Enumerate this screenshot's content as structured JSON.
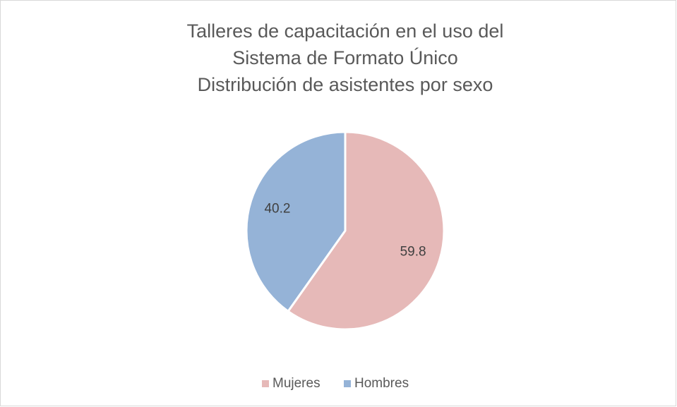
{
  "chart_data": {
    "type": "pie",
    "title": [
      "Talleres de capacitación en el uso del",
      "Sistema de Formato Único",
      "Distribución de asistentes por sexo"
    ],
    "categories": [
      "Mujeres",
      "Hombres"
    ],
    "values": [
      59.8,
      40.2
    ],
    "colors": [
      "#e6b9b8",
      "#95b3d7"
    ],
    "legend": "bottom"
  }
}
